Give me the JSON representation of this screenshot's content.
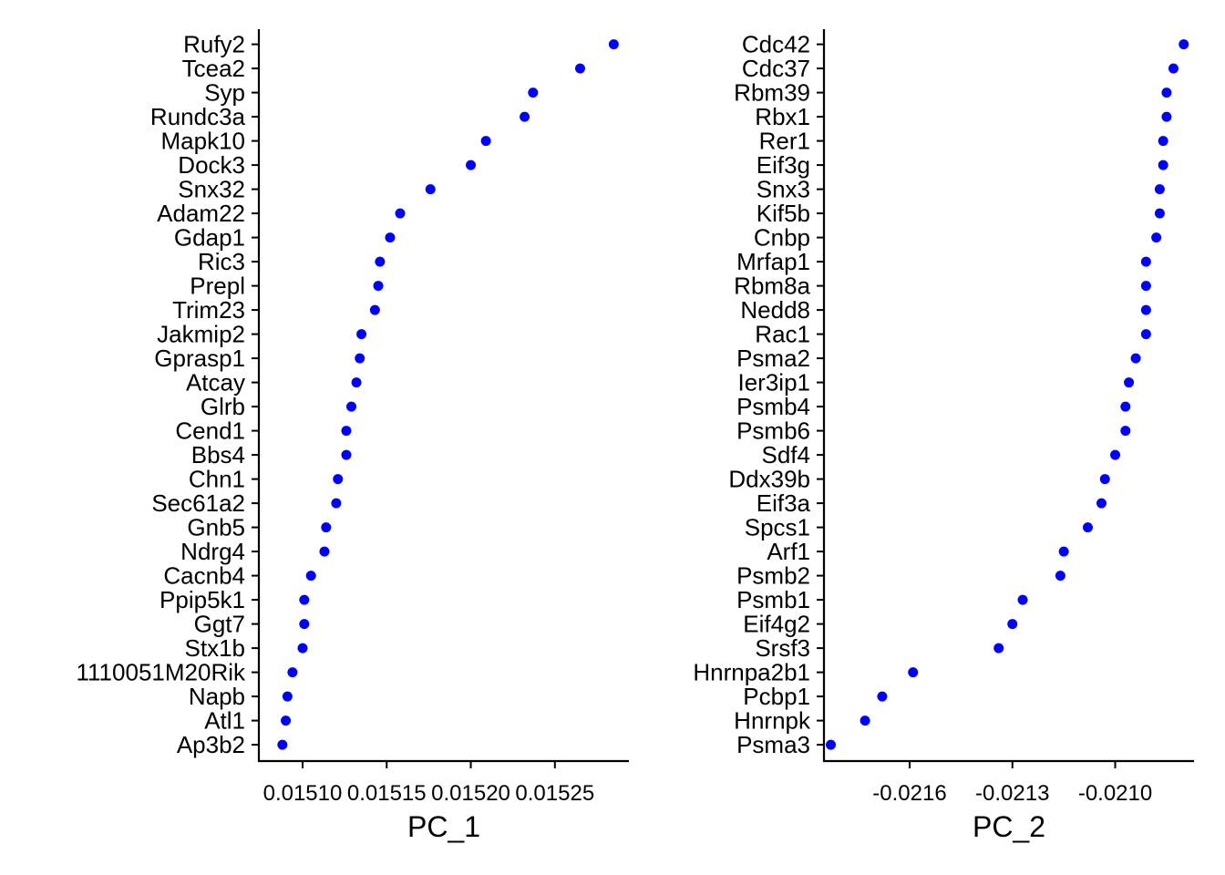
{
  "chart_data": [
    {
      "type": "scatter",
      "xlabel": "PC_1",
      "xlim": [
        0.015074,
        0.015294
      ],
      "xticks": [
        0.0151,
        0.01515,
        0.0152,
        0.01525
      ],
      "xtick_labels": [
        "0.01510",
        "0.01515",
        "0.01520",
        "0.01525"
      ],
      "point_color": "#0000ff",
      "genes": [
        "Rufy2",
        "Tcea2",
        "Syp",
        "Rundc3a",
        "Mapk10",
        "Dock3",
        "Snx32",
        "Adam22",
        "Gdap1",
        "Ric3",
        "Prepl",
        "Trim23",
        "Jakmip2",
        "Gprasp1",
        "Atcay",
        "Glrb",
        "Cend1",
        "Bbs4",
        "Chn1",
        "Sec61a2",
        "Gnb5",
        "Ndrg4",
        "Cacnb4",
        "Ppip5k1",
        "Ggt7",
        "Stx1b",
        "1110051M20Rik",
        "Napb",
        "Atl1",
        "Ap3b2"
      ],
      "values": [
        0.015285,
        0.015265,
        0.015237,
        0.015232,
        0.015209,
        0.0152,
        0.015176,
        0.015158,
        0.015152,
        0.015146,
        0.015145,
        0.015143,
        0.015135,
        0.015134,
        0.015132,
        0.015129,
        0.015126,
        0.015126,
        0.015121,
        0.01512,
        0.015114,
        0.015113,
        0.015105,
        0.015101,
        0.015101,
        0.0151,
        0.015094,
        0.015091,
        0.01509,
        0.015088
      ]
    },
    {
      "type": "scatter",
      "xlabel": "PC_2",
      "xlim": [
        -0.02185,
        -0.02077
      ],
      "xticks": [
        -0.0216,
        -0.0213,
        -0.021
      ],
      "xtick_labels": [
        "-0.0216",
        "-0.0213",
        "-0.0210"
      ],
      "point_color": "#0000ff",
      "genes": [
        "Cdc42",
        "Cdc37",
        "Rbm39",
        "Rbx1",
        "Rer1",
        "Eif3g",
        "Snx3",
        "Kif5b",
        "Cnbp",
        "Mrfap1",
        "Rbm8a",
        "Nedd8",
        "Rac1",
        "Psma2",
        "Ier3ip1",
        "Psmb4",
        "Psmb6",
        "Sdf4",
        "Ddx39b",
        "Eif3a",
        "Spcs1",
        "Arf1",
        "Psmb2",
        "Psmb1",
        "Eif4g2",
        "Srsf3",
        "Hnrnpa2b1",
        "Pcbp1",
        "Hnrnpk",
        "Psma3"
      ],
      "values": [
        -0.0208,
        -0.02083,
        -0.02085,
        -0.02085,
        -0.02086,
        -0.02086,
        -0.02087,
        -0.02087,
        -0.02088,
        -0.02091,
        -0.02091,
        -0.02091,
        -0.02091,
        -0.02094,
        -0.02096,
        -0.02097,
        -0.02097,
        -0.021,
        -0.02103,
        -0.02104,
        -0.02108,
        -0.02115,
        -0.02116,
        -0.02127,
        -0.0213,
        -0.02134,
        -0.02159,
        -0.02168,
        -0.02173,
        -0.02183
      ]
    }
  ]
}
